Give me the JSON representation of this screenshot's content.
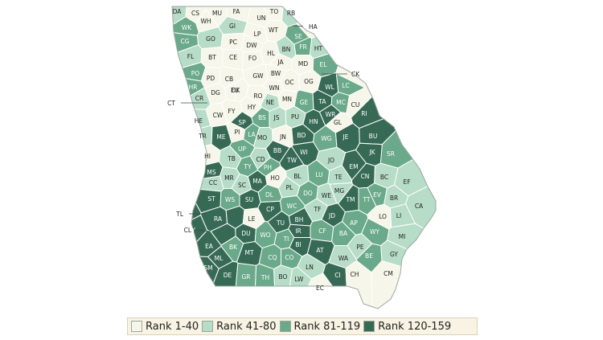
{
  "legend": [
    {
      "label": "Rank 1-40",
      "color": "#f7f6ea"
    },
    {
      "label": "Rank 41-80",
      "color": "#b7dcc8"
    },
    {
      "label": "Rank 81-119",
      "color": "#6aa98a"
    },
    {
      "label": "Rank 120-159",
      "color": "#376a55"
    }
  ],
  "map_colors": {
    "border": "#ffffff",
    "outline": "#9aa89f"
  },
  "counties": [
    {
      "label": "DA",
      "rank": 2
    },
    {
      "label": "CS",
      "rank": 1
    },
    {
      "label": "WH",
      "rank": 1
    },
    {
      "label": "MU",
      "rank": 1
    },
    {
      "label": "FA",
      "rank": 1
    },
    {
      "label": "UN",
      "rank": 1
    },
    {
      "label": "TO",
      "rank": 1
    },
    {
      "label": "RB",
      "rank": 2
    },
    {
      "label": "WK",
      "rank": 3
    },
    {
      "label": "GI",
      "rank": 2
    },
    {
      "label": "LP",
      "rank": 1
    },
    {
      "label": "WT",
      "rank": 1
    },
    {
      "label": "HA",
      "rank": 1
    },
    {
      "label": "CG",
      "rank": 3
    },
    {
      "label": "GO",
      "rank": 2
    },
    {
      "label": "PC",
      "rank": 1
    },
    {
      "label": "DW",
      "rank": 1
    },
    {
      "label": "SE",
      "rank": 3
    },
    {
      "label": "FR",
      "rank": 3
    },
    {
      "label": "HT",
      "rank": 2
    },
    {
      "label": "FL",
      "rank": 2
    },
    {
      "label": "BT",
      "rank": 1
    },
    {
      "label": "CE",
      "rank": 1
    },
    {
      "label": "FO",
      "rank": 1
    },
    {
      "label": "HL",
      "rank": 1
    },
    {
      "label": "BN",
      "rank": 2
    },
    {
      "label": "JA",
      "rank": 1
    },
    {
      "label": "MD",
      "rank": 1
    },
    {
      "label": "EL",
      "rank": 3
    },
    {
      "label": "PO",
      "rank": 3
    },
    {
      "label": "PD",
      "rank": 1
    },
    {
      "label": "CB",
      "rank": 1
    },
    {
      "label": "GW",
      "rank": 1
    },
    {
      "label": "BW",
      "rank": 1
    },
    {
      "label": "OG",
      "rank": 1
    },
    {
      "label": "CK",
      "rank": 1
    },
    {
      "label": "HR",
      "rank": 3
    },
    {
      "label": "DG",
      "rank": 1
    },
    {
      "label": "DK",
      "rank": 1
    },
    {
      "label": "WN",
      "rank": 1
    },
    {
      "label": "OC",
      "rank": 1
    },
    {
      "label": "WL",
      "rank": 4
    },
    {
      "label": "LC",
      "rank": 3
    },
    {
      "label": "CR",
      "rank": 2
    },
    {
      "label": "FU",
      "rank": 1
    },
    {
      "label": "RO",
      "rank": 1
    },
    {
      "label": "MN",
      "rank": 1
    },
    {
      "label": "TA",
      "rank": 4
    },
    {
      "label": "CT",
      "rank": 1
    },
    {
      "label": "HY",
      "rank": 1
    },
    {
      "label": "NE",
      "rank": 2
    },
    {
      "label": "GE",
      "rank": 3
    },
    {
      "label": "MC",
      "rank": 3
    },
    {
      "label": "CU",
      "rank": 1
    },
    {
      "label": "CW",
      "rank": 1
    },
    {
      "label": "FY",
      "rank": 1
    },
    {
      "label": "BS",
      "rank": 3
    },
    {
      "label": "JS",
      "rank": 2
    },
    {
      "label": "PU",
      "rank": 2
    },
    {
      "label": "WR",
      "rank": 4
    },
    {
      "label": "RI",
      "rank": 4
    },
    {
      "label": "HE",
      "rank": 2
    },
    {
      "label": "SP",
      "rank": 4
    },
    {
      "label": "HN",
      "rank": 4
    },
    {
      "label": "GL",
      "rank": 1
    },
    {
      "label": "PI",
      "rank": 1
    },
    {
      "label": "LA",
      "rank": 3
    },
    {
      "label": "TR",
      "rank": 2
    },
    {
      "label": "ME",
      "rank": 4
    },
    {
      "label": "MO",
      "rank": 2
    },
    {
      "label": "JN",
      "rank": 1
    },
    {
      "label": "BD",
      "rank": 4
    },
    {
      "label": "WG",
      "rank": 3
    },
    {
      "label": "JE",
      "rank": 4
    },
    {
      "label": "BU",
      "rank": 4
    },
    {
      "label": "UP",
      "rank": 3
    },
    {
      "label": "BB",
      "rank": 4
    },
    {
      "label": "WI",
      "rank": 4
    },
    {
      "label": "HI",
      "rank": 1
    },
    {
      "label": "TB",
      "rank": 2
    },
    {
      "label": "CD",
      "rank": 2
    },
    {
      "label": "TW",
      "rank": 4
    },
    {
      "label": "JK",
      "rank": 4
    },
    {
      "label": "SR",
      "rank": 3
    },
    {
      "label": "TY",
      "rank": 3
    },
    {
      "label": "PH",
      "rank": 3
    },
    {
      "label": "JO",
      "rank": 2
    },
    {
      "label": "MS",
      "rank": 4
    },
    {
      "label": "MR",
      "rank": 2
    },
    {
      "label": "BL",
      "rank": 2
    },
    {
      "label": "LU",
      "rank": 3
    },
    {
      "label": "EM",
      "rank": 4
    },
    {
      "label": "CC",
      "rank": 2
    },
    {
      "label": "SC",
      "rank": 2
    },
    {
      "label": "MA",
      "rank": 4
    },
    {
      "label": "HO",
      "rank": 1
    },
    {
      "label": "TE",
      "rank": 2
    },
    {
      "label": "CN",
      "rank": 4
    },
    {
      "label": "BC",
      "rank": 2
    },
    {
      "label": "EF",
      "rank": 2
    },
    {
      "label": "PL",
      "rank": 2
    },
    {
      "label": "DO",
      "rank": 3
    },
    {
      "label": "MG",
      "rank": 2
    },
    {
      "label": "WE",
      "rank": 2
    },
    {
      "label": "ST",
      "rank": 4
    },
    {
      "label": "WS",
      "rank": 3
    },
    {
      "label": "SU",
      "rank": 4
    },
    {
      "label": "DL",
      "rank": 3
    },
    {
      "label": "TM",
      "rank": 4
    },
    {
      "label": "TT",
      "rank": 3
    },
    {
      "label": "EV",
      "rank": 3
    },
    {
      "label": "BR",
      "rank": 2
    },
    {
      "label": "CA",
      "rank": 2
    },
    {
      "label": "WC",
      "rank": 3
    },
    {
      "label": "TF",
      "rank": 2
    },
    {
      "label": "QU",
      "rank": 4
    },
    {
      "label": "RA",
      "rank": 4
    },
    {
      "label": "TL",
      "rank": 4
    },
    {
      "label": "LE",
      "rank": 1
    },
    {
      "label": "CP",
      "rank": 4
    },
    {
      "label": "JD",
      "rank": 4
    },
    {
      "label": "LO",
      "rank": 1
    },
    {
      "label": "LI",
      "rank": 2
    },
    {
      "label": "CY",
      "rank": 4
    },
    {
      "label": "CL",
      "rank": 4
    },
    {
      "label": "DU",
      "rank": 4
    },
    {
      "label": "TU",
      "rank": 4
    },
    {
      "label": "BH",
      "rank": 4
    },
    {
      "label": "IR",
      "rank": 4
    },
    {
      "label": "AP",
      "rank": 3
    },
    {
      "label": "WY",
      "rank": 3
    },
    {
      "label": "MI",
      "rank": 2
    },
    {
      "label": "EA",
      "rank": 4
    },
    {
      "label": "BK",
      "rank": 3
    },
    {
      "label": "WO",
      "rank": 3
    },
    {
      "label": "TI",
      "rank": 3
    },
    {
      "label": "CF",
      "rank": 3
    },
    {
      "label": "BA",
      "rank": 3
    },
    {
      "label": "PE",
      "rank": 2
    },
    {
      "label": "ML",
      "rank": 4
    },
    {
      "label": "MT",
      "rank": 4
    },
    {
      "label": "BI",
      "rank": 4
    },
    {
      "label": "AT",
      "rank": 4
    },
    {
      "label": "WA",
      "rank": 2
    },
    {
      "label": "BE",
      "rank": 3
    },
    {
      "label": "GY",
      "rank": 2
    },
    {
      "label": "SM",
      "rank": 4
    },
    {
      "label": "DE",
      "rank": 4
    },
    {
      "label": "GR",
      "rank": 3
    },
    {
      "label": "TH",
      "rank": 3
    },
    {
      "label": "CQ",
      "rank": 3
    },
    {
      "label": "CO",
      "rank": 3
    },
    {
      "label": "LN",
      "rank": 2
    },
    {
      "label": "BO",
      "rank": 2
    },
    {
      "label": "LW",
      "rank": 2
    },
    {
      "label": "EC",
      "rank": 1
    },
    {
      "label": "CI",
      "rank": 4
    },
    {
      "label": "CH",
      "rank": 1
    },
    {
      "label": "CM",
      "rank": 1
    }
  ]
}
